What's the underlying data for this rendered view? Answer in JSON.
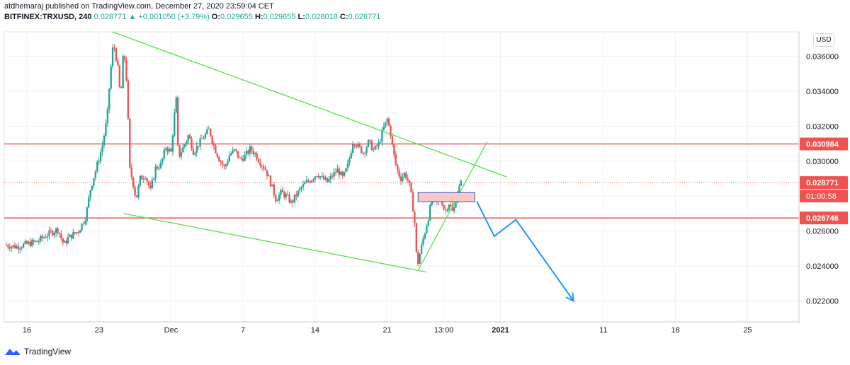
{
  "header": {
    "publisher_line": "atdhemaraj published on TradingView.com, December 27, 2020 23:59:04 CET",
    "symbol": "BITFINEX:TRXUSD, 240",
    "last": "0.028771",
    "change": "▲ +0.001050 (+3.79%)",
    "o_label": "O:",
    "o_value": "0.029655",
    "h_label": "H:",
    "h_value": "0.029655",
    "l_label": "L:",
    "l_value": "0.028018",
    "c_label": "C:",
    "c_value": "0.028771"
  },
  "currency_button": "USD",
  "footer": {
    "brand": "TradingView"
  },
  "colors": {
    "up": "#26a69a",
    "down": "#ef5350",
    "trendline": "#55e04a",
    "hline": "#e53935",
    "arrow": "#2196f3",
    "zone_fill": "#f8c8c8",
    "zone_border": "#3f51b5",
    "grid": "#eef0f3",
    "axis_text": "#131722"
  },
  "chart_data": {
    "type": "candlestick",
    "y_range": [
      0.0208,
      0.0374
    ],
    "y_ticks": [
      "0.022000",
      "0.024000",
      "0.026000",
      "0.028000",
      "0.030000",
      "0.032000",
      "0.034000",
      "0.036000"
    ],
    "y_tick_values": [
      0.022,
      0.024,
      0.026,
      0.028,
      0.03,
      0.032,
      0.034,
      0.036
    ],
    "x_ticks": [
      {
        "label": "16",
        "day": 16
      },
      {
        "label": "23",
        "day": 23
      },
      {
        "label": "Dec",
        "day": 30
      },
      {
        "label": "7",
        "day": 37
      },
      {
        "label": "14",
        "day": 44
      },
      {
        "label": "21",
        "day": 51
      },
      {
        "label": "13:00",
        "day": 56.5
      },
      {
        "label": "2021",
        "day": 62
      },
      {
        "label": "11",
        "day": 72
      },
      {
        "label": "18",
        "day": 79
      },
      {
        "label": "25",
        "day": 86
      }
    ],
    "x_range_days": [
      13.8,
      91
    ],
    "price_labels": [
      {
        "text": "0.030984",
        "value": 0.030984,
        "style": "line"
      },
      {
        "text": "0.028771",
        "value": 0.028771,
        "style": "dotted"
      },
      {
        "text": "01:00:58",
        "value": 0.028771,
        "style": "timer"
      },
      {
        "text": "0.026746",
        "value": 0.026746,
        "style": "line"
      }
    ],
    "series": [
      {
        "name": "TRXUSD",
        "points": [
          {
            "day": 14.0,
            "c": 0.0252
          },
          {
            "day": 15.0,
            "c": 0.0251
          },
          {
            "day": 16.0,
            "c": 0.02525
          },
          {
            "day": 17.0,
            "c": 0.0254
          },
          {
            "day": 18.0,
            "c": 0.0258
          },
          {
            "day": 19.0,
            "c": 0.0261
          },
          {
            "day": 19.6,
            "c": 0.0252
          },
          {
            "day": 20.0,
            "c": 0.0256
          },
          {
            "day": 21.0,
            "c": 0.026
          },
          {
            "day": 21.7,
            "c": 0.0268
          },
          {
            "day": 22.2,
            "c": 0.0285
          },
          {
            "day": 22.7,
            "c": 0.0295
          },
          {
            "day": 23.3,
            "c": 0.0308
          },
          {
            "day": 23.8,
            "c": 0.0325
          },
          {
            "day": 24.1,
            "c": 0.035
          },
          {
            "day": 24.4,
            "c": 0.0368
          },
          {
            "day": 24.8,
            "c": 0.0355
          },
          {
            "day": 25.1,
            "c": 0.0335
          },
          {
            "day": 25.4,
            "c": 0.0365
          },
          {
            "day": 25.7,
            "c": 0.0345
          },
          {
            "day": 26.0,
            "c": 0.0295
          },
          {
            "day": 26.3,
            "c": 0.0288
          },
          {
            "day": 26.6,
            "c": 0.0278
          },
          {
            "day": 27.0,
            "c": 0.029
          },
          {
            "day": 27.5,
            "c": 0.0292
          },
          {
            "day": 28.0,
            "c": 0.0283
          },
          {
            "day": 28.5,
            "c": 0.0296
          },
          {
            "day": 29.0,
            "c": 0.0298
          },
          {
            "day": 29.5,
            "c": 0.0308
          },
          {
            "day": 30.0,
            "c": 0.0305
          },
          {
            "day": 30.3,
            "c": 0.0325
          },
          {
            "day": 30.5,
            "c": 0.0335
          },
          {
            "day": 30.7,
            "c": 0.0302
          },
          {
            "day": 31.2,
            "c": 0.0308
          },
          {
            "day": 31.7,
            "c": 0.0315
          },
          {
            "day": 32.2,
            "c": 0.0305
          },
          {
            "day": 32.7,
            "c": 0.031
          },
          {
            "day": 33.2,
            "c": 0.0314
          },
          {
            "day": 33.7,
            "c": 0.0318
          },
          {
            "day": 34.2,
            "c": 0.0308
          },
          {
            "day": 34.7,
            "c": 0.0301
          },
          {
            "day": 35.2,
            "c": 0.0296
          },
          {
            "day": 35.7,
            "c": 0.0304
          },
          {
            "day": 36.2,
            "c": 0.0306
          },
          {
            "day": 36.7,
            "c": 0.0301
          },
          {
            "day": 37.2,
            "c": 0.0303
          },
          {
            "day": 37.7,
            "c": 0.0307
          },
          {
            "day": 38.2,
            "c": 0.0304
          },
          {
            "day": 38.7,
            "c": 0.0299
          },
          {
            "day": 39.2,
            "c": 0.0295
          },
          {
            "day": 39.7,
            "c": 0.0287
          },
          {
            "day": 40.2,
            "c": 0.0278
          },
          {
            "day": 40.7,
            "c": 0.0282
          },
          {
            "day": 41.2,
            "c": 0.028
          },
          {
            "day": 41.7,
            "c": 0.0276
          },
          {
            "day": 42.2,
            "c": 0.0281
          },
          {
            "day": 42.7,
            "c": 0.0285
          },
          {
            "day": 43.2,
            "c": 0.0288
          },
          {
            "day": 43.7,
            "c": 0.029
          },
          {
            "day": 44.2,
            "c": 0.0293
          },
          {
            "day": 44.7,
            "c": 0.029
          },
          {
            "day": 45.2,
            "c": 0.0288
          },
          {
            "day": 45.7,
            "c": 0.0292
          },
          {
            "day": 46.2,
            "c": 0.0295
          },
          {
            "day": 46.7,
            "c": 0.029
          },
          {
            "day": 47.2,
            "c": 0.0298
          },
          {
            "day": 47.7,
            "c": 0.0312
          },
          {
            "day": 48.2,
            "c": 0.0308
          },
          {
            "day": 48.7,
            "c": 0.0305
          },
          {
            "day": 49.2,
            "c": 0.0311
          },
          {
            "day": 49.7,
            "c": 0.0306
          },
          {
            "day": 50.2,
            "c": 0.031
          },
          {
            "day": 50.6,
            "c": 0.0318
          },
          {
            "day": 51.0,
            "c": 0.0324
          },
          {
            "day": 51.3,
            "c": 0.0317
          },
          {
            "day": 51.6,
            "c": 0.0305
          },
          {
            "day": 51.9,
            "c": 0.0296
          },
          {
            "day": 52.3,
            "c": 0.029
          },
          {
            "day": 52.7,
            "c": 0.0293
          },
          {
            "day": 53.1,
            "c": 0.0288
          },
          {
            "day": 53.4,
            "c": 0.0278
          },
          {
            "day": 53.7,
            "c": 0.0263
          },
          {
            "day": 53.9,
            "c": 0.0239
          },
          {
            "day": 54.2,
            "c": 0.0248
          },
          {
            "day": 54.6,
            "c": 0.0258
          },
          {
            "day": 55.0,
            "c": 0.0268
          },
          {
            "day": 55.4,
            "c": 0.028
          },
          {
            "day": 55.8,
            "c": 0.0276
          },
          {
            "day": 56.2,
            "c": 0.0279
          },
          {
            "day": 56.6,
            "c": 0.0271
          },
          {
            "day": 57.0,
            "c": 0.0276
          },
          {
            "day": 57.4,
            "c": 0.027
          },
          {
            "day": 57.8,
            "c": 0.0282
          },
          {
            "day": 58.2,
            "c": 0.02877
          }
        ]
      }
    ],
    "drawings": {
      "upper_trendline": [
        {
          "day": 24.3,
          "v": 0.0374
        },
        {
          "day": 62.6,
          "v": 0.0291
        }
      ],
      "lower_trendline": [
        {
          "day": 25.4,
          "v": 0.027
        },
        {
          "day": 54.8,
          "v": 0.02365
        }
      ],
      "rising_trendline": [
        {
          "day": 54.0,
          "v": 0.02375
        },
        {
          "day": 60.7,
          "v": 0.0311
        }
      ],
      "horizontal_lines": [
        0.030984,
        0.026746
      ],
      "current_price_line": 0.028771,
      "zone": {
        "day_from": 54.0,
        "day_to": 59.5,
        "v_from": 0.02768,
        "v_to": 0.0282
      },
      "projection_arrow": [
        {
          "day": 59.7,
          "v": 0.0277
        },
        {
          "day": 61.4,
          "v": 0.0257
        },
        {
          "day": 63.5,
          "v": 0.02665
        },
        {
          "day": 69.1,
          "v": 0.022
        }
      ]
    }
  }
}
